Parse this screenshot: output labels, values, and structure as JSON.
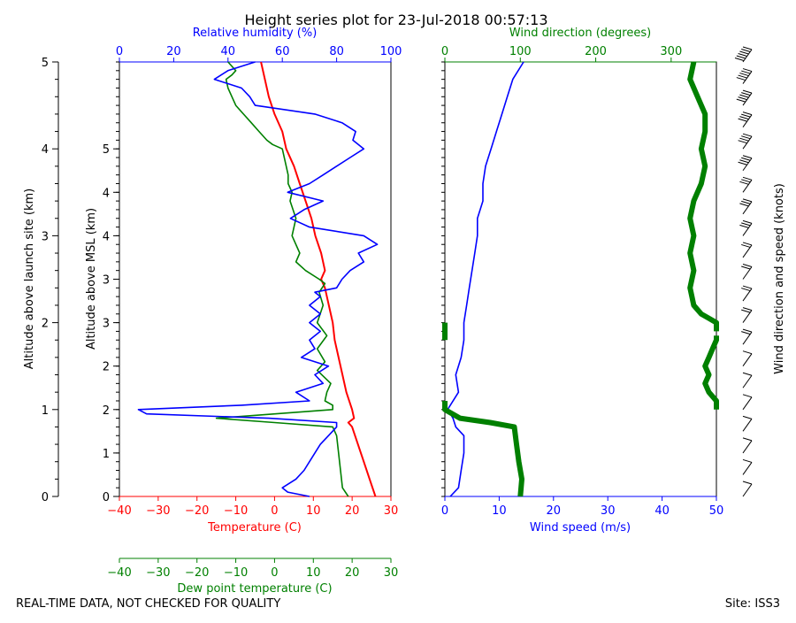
{
  "chart_data": {
    "type": "line",
    "title": "Height series plot for 23-Jul-2018 00:57:13",
    "footer_left": "REAL-TIME DATA, NOT CHECKED FOR QUALITY",
    "footer_right": "Site: ISS3",
    "colors": {
      "temperature": "#ff0000",
      "dewpoint": "#008000",
      "rh": "#0000ff",
      "wind_speed": "#0000ff",
      "wind_dir": "#008000",
      "barbs": "#000000"
    },
    "axes": {
      "launch_alt": {
        "label": "Altitude above launch site (km)",
        "range": [
          0,
          5
        ],
        "ticks": [
          "0",
          "1",
          "2",
          "3",
          "4",
          "5"
        ]
      },
      "msl_alt": {
        "label": "Altitude above MSL (km)",
        "range": [
          0,
          5
        ],
        "ticks": [
          "0",
          "1",
          "2",
          "2",
          "3",
          "3",
          "4",
          "4",
          "5"
        ]
      },
      "temperature": {
        "label": "Temperature (C)",
        "range": [
          -40,
          30
        ],
        "ticks": [
          "−40",
          "−30",
          "−20",
          "−10",
          "0",
          "10",
          "20",
          "30"
        ]
      },
      "dewpoint": {
        "label": "Dew point temperature (C)",
        "range": [
          -40,
          30
        ],
        "ticks": [
          "−40",
          "−30",
          "−20",
          "−10",
          "0",
          "10",
          "20",
          "30"
        ]
      },
      "rh": {
        "label": "Relative humidity (%)",
        "range": [
          0,
          100
        ],
        "ticks": [
          "0",
          "20",
          "40",
          "60",
          "80",
          "100"
        ]
      },
      "wind_speed": {
        "label": "Wind speed (m/s)",
        "range": [
          0,
          50
        ],
        "ticks": [
          "0",
          "10",
          "20",
          "30",
          "40",
          "50"
        ]
      },
      "wind_dir": {
        "label": "Wind direction (degrees)",
        "range": [
          0,
          360
        ],
        "ticks": [
          "0",
          "100",
          "200",
          "300"
        ]
      },
      "barbs": {
        "label": "Wind direction and speed (knots)"
      }
    },
    "series": [
      {
        "name": "Temperature",
        "units": "C",
        "alt_km": [
          0,
          0.2,
          0.4,
          0.6,
          0.8,
          0.85,
          0.9,
          1.0,
          1.2,
          1.4,
          1.6,
          1.8,
          2.0,
          2.2,
          2.4,
          2.5,
          2.6,
          2.8,
          3.0,
          3.2,
          3.4,
          3.6,
          3.8,
          4.0,
          4.2,
          4.4,
          4.6,
          4.8,
          5.0
        ],
        "values": [
          26,
          24.5,
          23,
          21.5,
          20,
          19,
          20.5,
          20,
          18.5,
          17.5,
          16.5,
          15.5,
          15,
          14,
          13,
          12,
          13,
          12,
          10.5,
          9.5,
          8,
          6.5,
          5,
          3,
          2,
          0,
          -1.5,
          -2.5,
          -3.5
        ]
      },
      {
        "name": "Dew point",
        "units": "C",
        "alt_km": [
          0,
          0.1,
          0.3,
          0.5,
          0.7,
          0.8,
          0.85,
          0.9,
          1.0,
          1.05,
          1.1,
          1.2,
          1.3,
          1.45,
          1.55,
          1.7,
          1.85,
          2.0,
          2.2,
          2.35,
          2.45,
          2.5,
          2.6,
          2.7,
          2.8,
          3.0,
          3.2,
          3.4,
          3.5,
          3.6,
          3.7,
          3.8,
          4.0,
          4.05,
          4.1,
          4.2,
          4.3,
          4.4,
          4.5,
          4.6,
          4.7,
          4.8,
          4.85,
          4.9,
          5.0
        ],
        "values": [
          19,
          17.5,
          17,
          16.5,
          16,
          15,
          0,
          -15,
          15,
          15,
          13,
          13.5,
          14.5,
          11,
          13,
          11,
          13.5,
          11,
          12.5,
          11.5,
          13,
          11.5,
          8,
          5.5,
          6.5,
          4.5,
          5.5,
          4,
          4.5,
          3.5,
          3.5,
          3,
          2,
          -0.5,
          -2,
          -4,
          -6,
          -8,
          -10,
          -11,
          -12,
          -12.5,
          -11,
          -10,
          -12
        ]
      },
      {
        "name": "Relative humidity",
        "units": "%",
        "alt_km": [
          0,
          0.05,
          0.1,
          0.2,
          0.3,
          0.4,
          0.5,
          0.6,
          0.7,
          0.8,
          0.85,
          0.9,
          0.95,
          1.0,
          1.05,
          1.1,
          1.2,
          1.3,
          1.4,
          1.5,
          1.6,
          1.7,
          1.8,
          1.9,
          2.0,
          2.1,
          2.2,
          2.3,
          2.35,
          2.4,
          2.5,
          2.6,
          2.7,
          2.8,
          2.9,
          3.0,
          3.1,
          3.2,
          3.3,
          3.4,
          3.5,
          3.6,
          3.7,
          3.8,
          3.9,
          4.0,
          4.1,
          4.2,
          4.3,
          4.4,
          4.5,
          4.6,
          4.7,
          4.8,
          4.9,
          5.0
        ],
        "values": [
          70,
          62,
          60,
          65,
          68,
          70,
          72,
          74,
          77,
          80,
          80,
          55,
          10,
          7,
          45,
          70,
          65,
          75,
          72,
          77,
          67,
          72,
          70,
          74,
          70,
          74,
          70,
          74,
          72,
          80,
          82,
          85,
          90,
          88,
          95,
          90,
          70,
          63,
          68,
          75,
          62,
          70,
          75,
          80,
          85,
          90,
          86,
          87,
          82,
          72,
          50,
          48,
          45,
          35,
          40,
          50
        ]
      },
      {
        "name": "Wind speed",
        "units": "m/s",
        "alt_km": [
          0,
          0.1,
          0.3,
          0.5,
          0.7,
          0.8,
          0.9,
          1.0,
          1.2,
          1.4,
          1.6,
          1.8,
          2.0,
          2.2,
          2.4,
          2.6,
          2.8,
          3.0,
          3.2,
          3.4,
          3.6,
          3.8,
          4.0,
          4.2,
          4.4,
          4.6,
          4.8,
          5.0
        ],
        "values": [
          1,
          2.5,
          3,
          3.5,
          3.5,
          2,
          1.5,
          0.5,
          2.5,
          2,
          3,
          3.5,
          3.5,
          4,
          4.5,
          5,
          5.5,
          6,
          6,
          7,
          7,
          7.5,
          8.5,
          9.5,
          10.5,
          11.5,
          12.5,
          14.5
        ]
      },
      {
        "name": "Wind direction",
        "units": "degrees",
        "alt_km": [
          0,
          0.2,
          0.4,
          0.6,
          0.8,
          0.85,
          0.9,
          1.0,
          1.1,
          1.2,
          1.3,
          1.4,
          1.5,
          1.6,
          1.7,
          1.8,
          1.85,
          1.9,
          2.0,
          2.05,
          2.1,
          2.2,
          2.4,
          2.6,
          2.8,
          3.0,
          3.2,
          3.4,
          3.6,
          3.8,
          4.0,
          4.2,
          4.4,
          4.6,
          4.8,
          5.0
        ],
        "values": [
          100,
          102,
          98,
          95,
          92,
          60,
          20,
          0,
          360,
          350,
          345,
          350,
          345,
          350,
          355,
          360,
          0,
          0,
          360,
          350,
          340,
          330,
          325,
          330,
          325,
          330,
          325,
          330,
          340,
          345,
          340,
          345,
          345,
          335,
          325,
          330
        ]
      }
    ],
    "barbs": {
      "alt_km": [
        0,
        0.25,
        0.5,
        0.75,
        1.0,
        1.25,
        1.5,
        1.75,
        2.0,
        2.25,
        2.5,
        2.75,
        3.0,
        3.25,
        3.5,
        3.75,
        4.0,
        4.25,
        4.5,
        4.75,
        5.0
      ],
      "knots": [
        4,
        6,
        7,
        5,
        2,
        6,
        7,
        8,
        9,
        10,
        11,
        12,
        14,
        14,
        16,
        18,
        20,
        22,
        24,
        26,
        28
      ]
    }
  }
}
